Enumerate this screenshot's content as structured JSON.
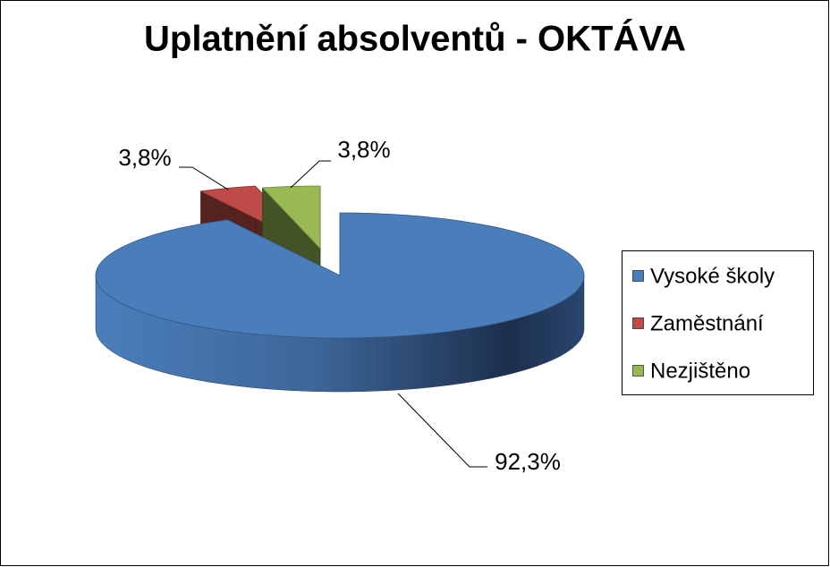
{
  "chart_data": {
    "type": "pie3d",
    "title": "Uplatnění absolventů - OKTÁVA",
    "categories": [
      "Vysoké školy",
      "Zaměstnání",
      "Nezjištěno"
    ],
    "values": [
      92.3,
      3.8,
      3.8
    ],
    "value_labels": [
      "92,3%",
      "3,8%",
      "3,8%"
    ],
    "colors": [
      "#4a7ebb",
      "#be4b48",
      "#98b954"
    ],
    "legend": "right"
  }
}
